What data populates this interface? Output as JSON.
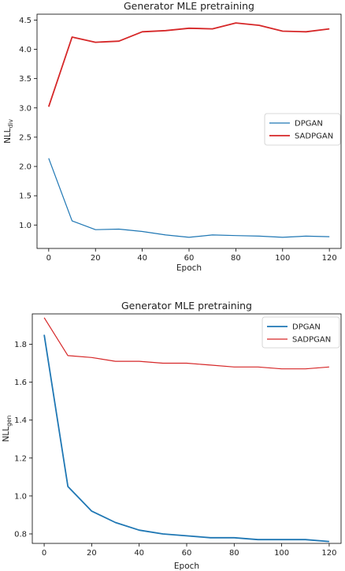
{
  "chart_data": [
    {
      "type": "line",
      "title": "Generator MLE pretraining",
      "xlabel": "Epoch",
      "ylabel": "NLL_div",
      "ylabel_base": "NLL",
      "ylabel_sub": "div",
      "xlim": [
        -5,
        125
      ],
      "ylim": [
        0.6,
        4.6
      ],
      "xticks": [
        0,
        20,
        40,
        60,
        80,
        100,
        120
      ],
      "yticks": [
        1.0,
        1.5,
        2.0,
        2.5,
        3.0,
        3.5,
        4.0,
        4.5
      ],
      "ytick_format": 1,
      "grid": false,
      "legend": "center-right",
      "x": [
        0,
        10,
        20,
        30,
        40,
        50,
        60,
        70,
        80,
        90,
        100,
        110,
        120
      ],
      "series": [
        {
          "name": "DPGAN",
          "color": "#1f77b4",
          "width": 1.2,
          "values": [
            2.14,
            1.07,
            0.92,
            0.93,
            0.89,
            0.83,
            0.79,
            0.83,
            0.82,
            0.81,
            0.79,
            0.81,
            0.8
          ]
        },
        {
          "name": "SADPGAN",
          "color": "#d62728",
          "width": 1.8,
          "values": [
            3.02,
            4.21,
            4.12,
            4.14,
            4.3,
            4.32,
            4.36,
            4.35,
            4.45,
            4.41,
            4.31,
            4.3,
            4.35
          ]
        }
      ]
    },
    {
      "type": "line",
      "title": "Generator MLE pretraining",
      "xlabel": "Epoch",
      "ylabel": "NLL_gen",
      "ylabel_base": "NLL",
      "ylabel_sub": "gen",
      "xlim": [
        -5,
        125
      ],
      "ylim": [
        0.75,
        1.96
      ],
      "xticks": [
        0,
        20,
        40,
        60,
        80,
        100,
        120
      ],
      "yticks": [
        0.8,
        1.0,
        1.2,
        1.4,
        1.6,
        1.8
      ],
      "ytick_format": 1,
      "grid": false,
      "legend": "top-right",
      "x": [
        0,
        10,
        20,
        30,
        40,
        50,
        60,
        70,
        80,
        90,
        100,
        110,
        120
      ],
      "series": [
        {
          "name": "DPGAN",
          "color": "#1f77b4",
          "width": 1.8,
          "values": [
            1.85,
            1.05,
            0.92,
            0.86,
            0.82,
            0.8,
            0.79,
            0.78,
            0.78,
            0.77,
            0.77,
            0.77,
            0.76
          ]
        },
        {
          "name": "SADPGAN",
          "color": "#d62728",
          "width": 1.2,
          "values": [
            1.94,
            1.74,
            1.73,
            1.71,
            1.71,
            1.7,
            1.7,
            1.69,
            1.68,
            1.68,
            1.67,
            1.67,
            1.68
          ]
        }
      ]
    }
  ]
}
